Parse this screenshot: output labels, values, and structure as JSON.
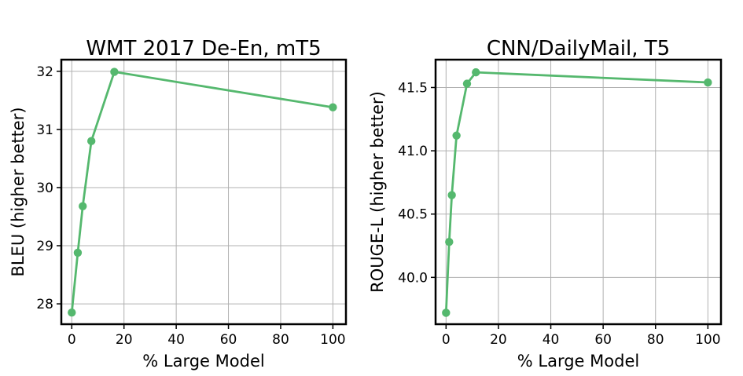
{
  "chart_data": [
    {
      "type": "line",
      "title": "WMT 2017 De-En, mT5",
      "xlabel": "% Large Model",
      "ylabel": "BLEU (higher better)",
      "xlim": [
        -4,
        105
      ],
      "ylim": [
        27.65,
        32.2
      ],
      "xticks": [
        0,
        20,
        40,
        60,
        80,
        100
      ],
      "yticks": [
        28,
        29,
        30,
        31,
        32
      ],
      "grid": true,
      "color": "#55b86e",
      "series": [
        {
          "x": [
            0,
            2.3,
            4.2,
            7.5,
            16.3,
            100
          ],
          "y": [
            27.85,
            28.88,
            29.68,
            30.8,
            31.99,
            31.38
          ]
        }
      ]
    },
    {
      "type": "line",
      "title": "CNN/DailyMail, T5",
      "xlabel": "% Large Model",
      "ylabel": "ROUGE-L (high­er better)",
      "xlim": [
        -4,
        105
      ],
      "ylim": [
        39.63,
        41.72
      ],
      "xticks": [
        0,
        20,
        40,
        60,
        80,
        100
      ],
      "yticks": [
        "40.0",
        "40.5",
        "41.0",
        "41.5"
      ],
      "grid": true,
      "color": "#55b86e",
      "series": [
        {
          "x": [
            0,
            1.2,
            2.2,
            4.0,
            8.0,
            11.4,
            100
          ],
          "y": [
            39.72,
            40.28,
            40.65,
            41.12,
            41.53,
            41.62,
            41.54
          ]
        }
      ]
    }
  ]
}
